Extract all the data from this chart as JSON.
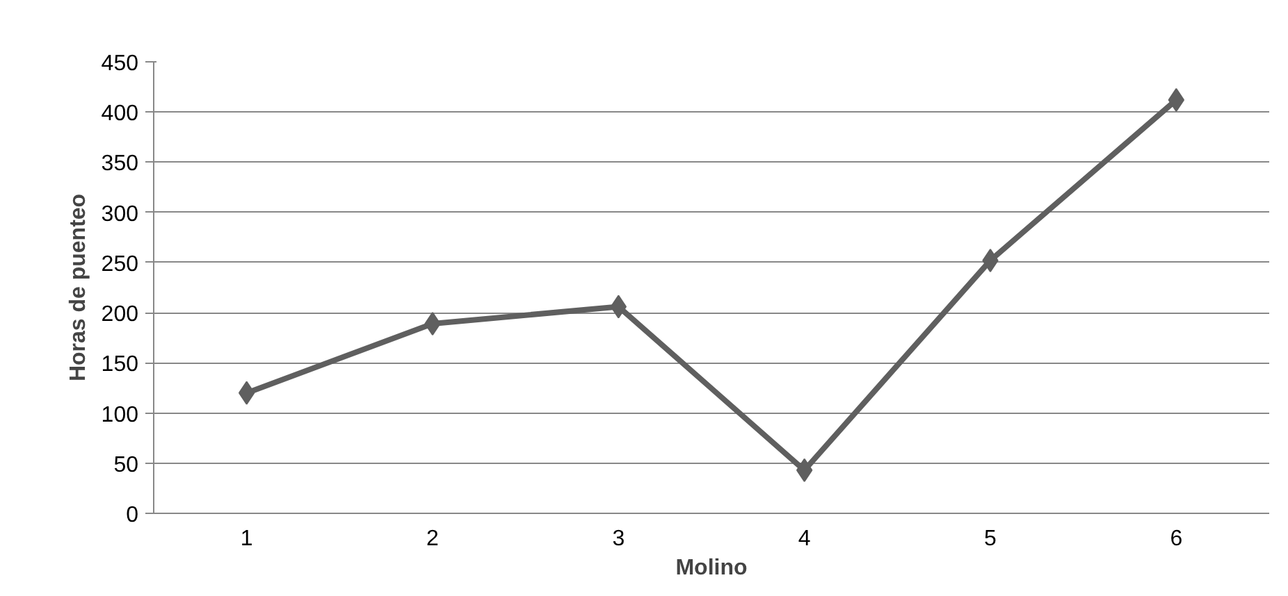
{
  "chart_data": {
    "type": "line",
    "xlabel": "Molino",
    "ylabel": "Horas de puenteo",
    "categories": [
      "1",
      "2",
      "3",
      "4",
      "5",
      "6"
    ],
    "series": [
      {
        "color": "#5f5f5f",
        "values": [
          120,
          189,
          206,
          43,
          252,
          412
        ]
      }
    ],
    "ylim": [
      0,
      450
    ],
    "yticks": [
      0,
      50,
      100,
      150,
      200,
      250,
      300,
      350,
      400,
      450
    ],
    "grid": "y",
    "marker": "diamond",
    "line_style": "solid"
  }
}
